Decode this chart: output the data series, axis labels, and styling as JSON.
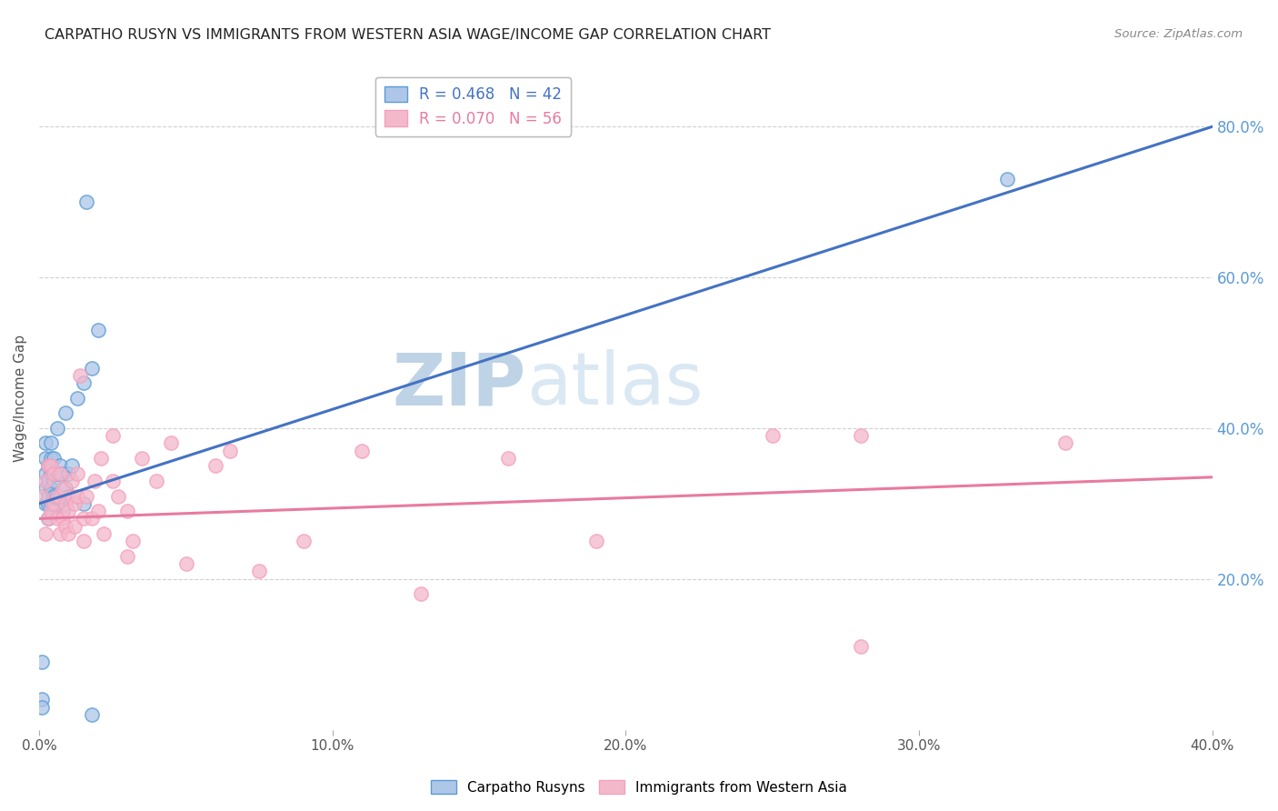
{
  "title": "CARPATHO RUSYN VS IMMIGRANTS FROM WESTERN ASIA WAGE/INCOME GAP CORRELATION CHART",
  "source": "Source: ZipAtlas.com",
  "ylabel": "Wage/Income Gap",
  "xmin": 0.0,
  "xmax": 0.4,
  "ymin": 0.0,
  "ymax": 0.88,
  "yticks": [
    0.2,
    0.4,
    0.6,
    0.8
  ],
  "xticks": [
    0.0,
    0.1,
    0.2,
    0.3,
    0.4
  ],
  "blue_R": 0.468,
  "blue_N": 42,
  "pink_R": 0.07,
  "pink_N": 56,
  "blue_fill_color": "#aec6e8",
  "pink_fill_color": "#f4b8cb",
  "blue_edge_color": "#5b9bd5",
  "pink_edge_color": "#f4a0bc",
  "blue_line_color": "#4472c4",
  "pink_line_color": "#e87aa0",
  "watermark_zip": "ZIP",
  "watermark_atlas": "atlas",
  "legend_label_blue": "Carpatho Rusyns",
  "legend_label_pink": "Immigrants from Western Asia",
  "blue_scatter_x": [
    0.001,
    0.001,
    0.001,
    0.002,
    0.002,
    0.002,
    0.002,
    0.002,
    0.003,
    0.003,
    0.003,
    0.003,
    0.003,
    0.004,
    0.004,
    0.004,
    0.004,
    0.004,
    0.005,
    0.005,
    0.005,
    0.005,
    0.006,
    0.006,
    0.006,
    0.007,
    0.007,
    0.008,
    0.008,
    0.009,
    0.009,
    0.01,
    0.01,
    0.011,
    0.013,
    0.015,
    0.015,
    0.016,
    0.018,
    0.02,
    0.33,
    0.018
  ],
  "blue_scatter_y": [
    0.04,
    0.09,
    0.03,
    0.3,
    0.32,
    0.34,
    0.36,
    0.38,
    0.28,
    0.3,
    0.31,
    0.33,
    0.35,
    0.3,
    0.32,
    0.34,
    0.36,
    0.38,
    0.29,
    0.31,
    0.33,
    0.36,
    0.31,
    0.34,
    0.4,
    0.31,
    0.35,
    0.29,
    0.34,
    0.32,
    0.42,
    0.31,
    0.34,
    0.35,
    0.44,
    0.3,
    0.46,
    0.7,
    0.48,
    0.53,
    0.73,
    0.02
  ],
  "pink_scatter_x": [
    0.001,
    0.002,
    0.002,
    0.003,
    0.003,
    0.004,
    0.004,
    0.005,
    0.005,
    0.006,
    0.006,
    0.007,
    0.007,
    0.008,
    0.008,
    0.009,
    0.009,
    0.01,
    0.01,
    0.011,
    0.011,
    0.012,
    0.012,
    0.013,
    0.013,
    0.014,
    0.015,
    0.015,
    0.016,
    0.018,
    0.019,
    0.02,
    0.021,
    0.022,
    0.025,
    0.025,
    0.027,
    0.03,
    0.03,
    0.032,
    0.035,
    0.04,
    0.045,
    0.05,
    0.06,
    0.065,
    0.075,
    0.09,
    0.11,
    0.16,
    0.19,
    0.25,
    0.13,
    0.28,
    0.28,
    0.35
  ],
  "pink_scatter_y": [
    0.31,
    0.26,
    0.33,
    0.28,
    0.35,
    0.29,
    0.35,
    0.3,
    0.34,
    0.28,
    0.31,
    0.26,
    0.34,
    0.28,
    0.32,
    0.27,
    0.3,
    0.26,
    0.29,
    0.31,
    0.33,
    0.27,
    0.3,
    0.31,
    0.34,
    0.47,
    0.25,
    0.28,
    0.31,
    0.28,
    0.33,
    0.29,
    0.36,
    0.26,
    0.39,
    0.33,
    0.31,
    0.23,
    0.29,
    0.25,
    0.36,
    0.33,
    0.38,
    0.22,
    0.35,
    0.37,
    0.21,
    0.25,
    0.37,
    0.36,
    0.25,
    0.39,
    0.18,
    0.39,
    0.11,
    0.38
  ],
  "blue_line_x0": 0.0,
  "blue_line_x1": 0.4,
  "blue_line_y0": 0.3,
  "blue_line_y1": 0.8,
  "pink_line_x0": 0.0,
  "pink_line_x1": 0.4,
  "pink_line_y0": 0.28,
  "pink_line_y1": 0.335,
  "background_color": "#ffffff",
  "grid_color": "#d0d0d0"
}
